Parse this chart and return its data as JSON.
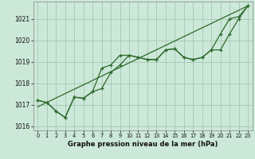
{
  "title": "Graphe pression niveau de la mer (hPa)",
  "background_color": "#cce8d8",
  "grid_color": "#aaccbb",
  "line_color": "#2d6a2d",
  "xlim": [
    -0.5,
    23.5
  ],
  "ylim": [
    1015.8,
    1021.8
  ],
  "yticks": [
    1016,
    1017,
    1018,
    1019,
    1020,
    1021
  ],
  "xticks": [
    0,
    1,
    2,
    3,
    4,
    5,
    6,
    7,
    8,
    9,
    10,
    11,
    12,
    13,
    14,
    15,
    16,
    17,
    18,
    19,
    20,
    21,
    22,
    23
  ],
  "series1_x": [
    0,
    1,
    2,
    3,
    4,
    5,
    6,
    7,
    8,
    9,
    10,
    11,
    12,
    13,
    14,
    15,
    16,
    17,
    18,
    19,
    20,
    21,
    22,
    23
  ],
  "series1_y": [
    1017.2,
    1017.1,
    1016.7,
    1016.4,
    1017.35,
    1017.3,
    1017.6,
    1018.7,
    1018.85,
    1019.3,
    1019.3,
    1019.2,
    1019.1,
    1019.1,
    1019.55,
    1019.6,
    1019.2,
    1019.1,
    1019.2,
    1019.55,
    1020.3,
    1021.0,
    1021.1,
    1021.6
  ],
  "series2_x": [
    0,
    1,
    2,
    3,
    4,
    5,
    6,
    7,
    8,
    9,
    10,
    11,
    12,
    13,
    14,
    15,
    16,
    17,
    18,
    19,
    20,
    21,
    22,
    23
  ],
  "series2_y": [
    1017.2,
    1017.1,
    1016.7,
    1016.4,
    1017.35,
    1017.3,
    1017.6,
    1017.75,
    1018.5,
    1018.85,
    1019.3,
    1019.2,
    1019.1,
    1019.1,
    1019.55,
    1019.6,
    1019.2,
    1019.1,
    1019.2,
    1019.55,
    1019.55,
    1020.3,
    1021.0,
    1021.6
  ],
  "trend_x": [
    0,
    23
  ],
  "trend_y": [
    1016.9,
    1021.6
  ]
}
